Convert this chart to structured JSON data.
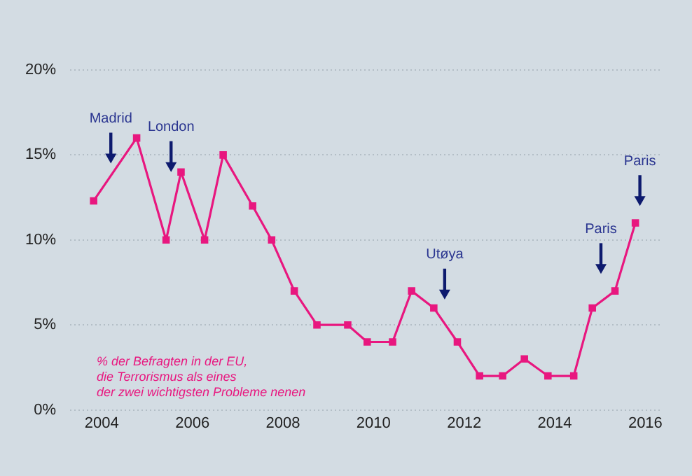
{
  "chart_data": {
    "type": "line",
    "x": [
      2003.82,
      2004.77,
      2005.42,
      2005.75,
      2006.27,
      2006.68,
      2007.33,
      2007.75,
      2008.25,
      2008.75,
      2009.43,
      2009.86,
      2010.42,
      2010.84,
      2011.33,
      2011.85,
      2012.34,
      2012.85,
      2013.33,
      2013.85,
      2014.42,
      2014.83,
      2015.33,
      2015.78
    ],
    "series": [
      {
        "color": "#e8177f",
        "values": [
          12.3,
          16,
          10,
          14,
          10,
          15,
          12,
          10,
          7,
          5,
          5,
          4,
          4,
          7,
          6,
          4,
          2,
          2,
          3,
          2,
          2,
          6,
          7,
          11
        ]
      }
    ],
    "xlim": [
      2003.3,
      2016.35
    ],
    "xticks": [
      2004,
      2006,
      2008,
      2010,
      2012,
      2014,
      2016
    ],
    "ylim": [
      0,
      20
    ],
    "yticks": [
      {
        "value": 0,
        "label": "0%"
      },
      {
        "value": 5,
        "label": "5%"
      },
      {
        "value": 10,
        "label": "10%"
      },
      {
        "value": 15,
        "label": "15%"
      },
      {
        "value": 20,
        "label": "20%"
      }
    ],
    "grid": "y",
    "legend": false,
    "marker": "square",
    "line_style": "solid",
    "annotations": [
      "Madrid",
      "London",
      "Utøya",
      "Paris",
      "Paris",
      "% der Befragten in der EU,\ndie Terrorismus als eines\nder zwei wichtigsten Probleme nenen"
    ]
  }
}
